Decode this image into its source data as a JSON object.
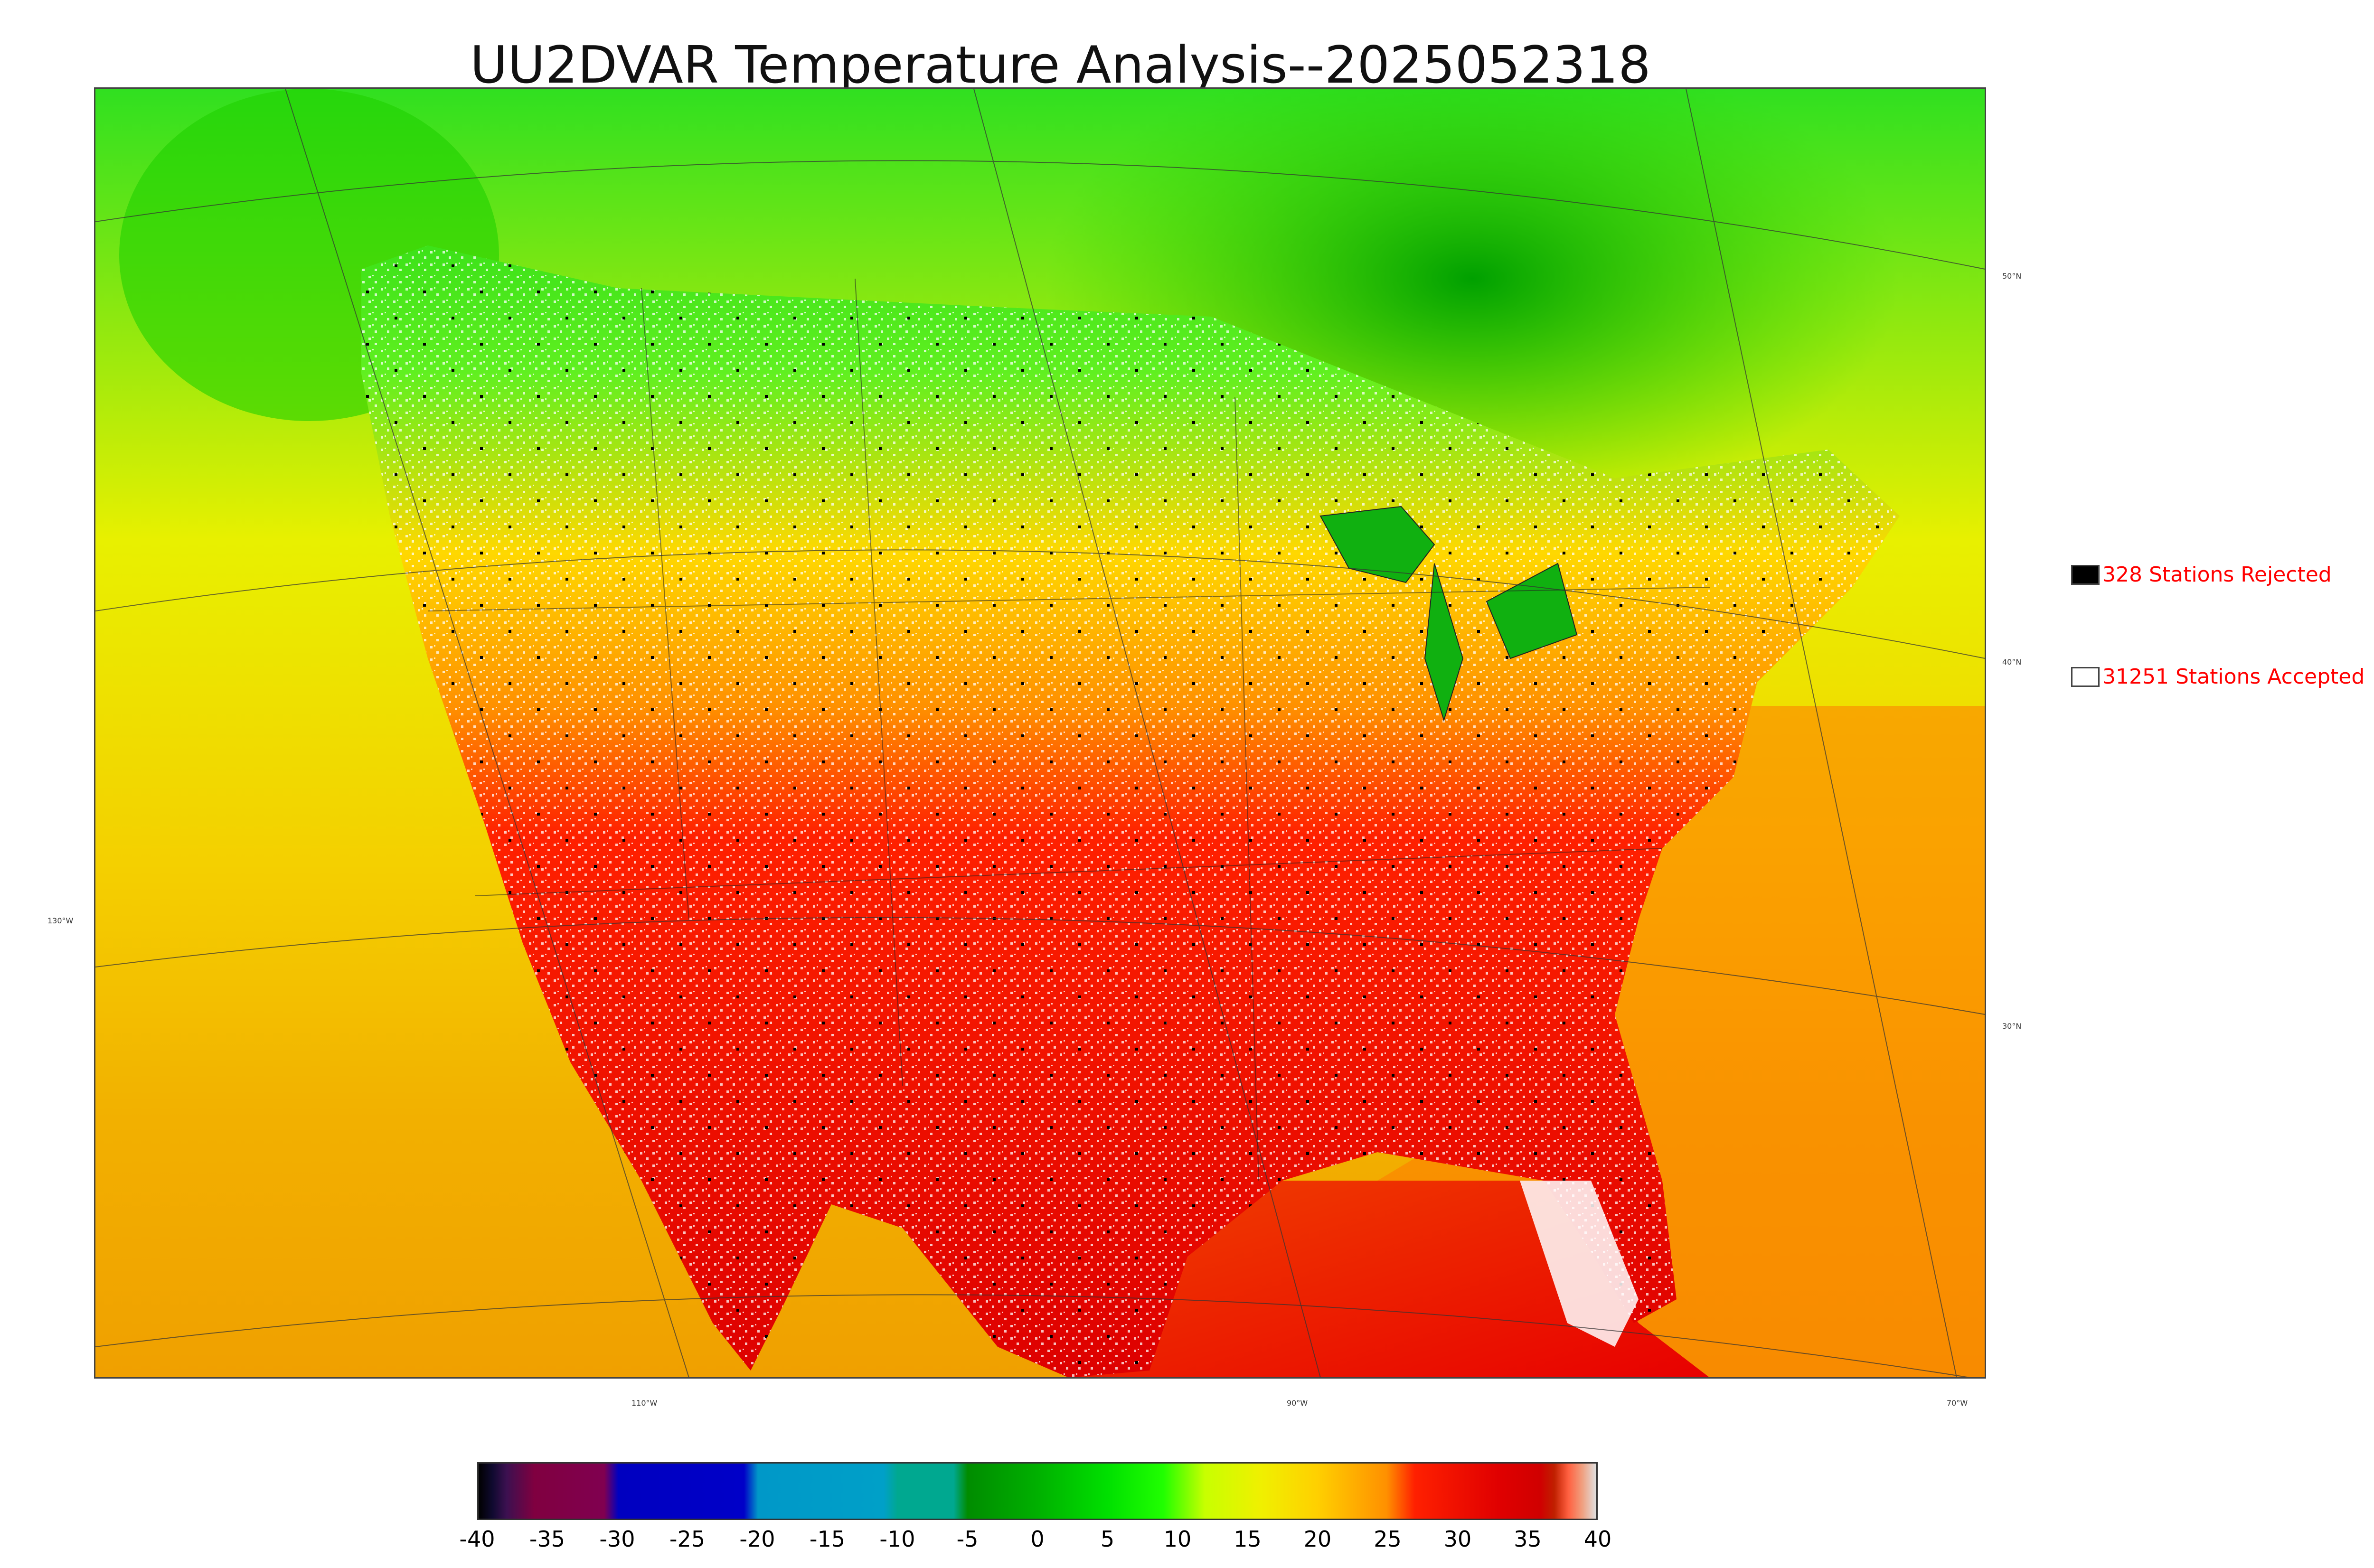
{
  "title": "UU2DVAR Temperature Analysis--2025052318",
  "map": {
    "lat_labels": [
      "50°N",
      "40°N",
      "30°N"
    ],
    "lon_labels": [
      "130°W",
      "110°W",
      "90°W",
      "70°W"
    ]
  },
  "legend": {
    "rejected": {
      "label": "328 Stations Rejected",
      "swatch_color": "#000000"
    },
    "accepted": {
      "label": "31251 Stations Accepted",
      "swatch_color": "#ffffff"
    }
  },
  "colorbar": {
    "tick_labels": [
      "-40",
      "-35",
      "-30",
      "-25",
      "-20",
      "-15",
      "-10",
      "-5",
      "0",
      "5",
      "10",
      "15",
      "20",
      "25",
      "30",
      "35",
      "40"
    ],
    "range": [
      -40,
      40
    ],
    "stops": [
      {
        "v": -40,
        "c": "#000000"
      },
      {
        "v": -39,
        "c": "#100a30"
      },
      {
        "v": -38,
        "c": "#3c1050"
      },
      {
        "v": -36,
        "c": "#800040"
      },
      {
        "v": -31,
        "c": "#800050"
      },
      {
        "v": -30,
        "c": "#0000c0"
      },
      {
        "v": -21,
        "c": "#0000c8"
      },
      {
        "v": -20,
        "c": "#0098c8"
      },
      {
        "v": -11,
        "c": "#00a0c8"
      },
      {
        "v": -10,
        "c": "#00a890"
      },
      {
        "v": -6,
        "c": "#00a890"
      },
      {
        "v": -5,
        "c": "#008c00"
      },
      {
        "v": 0,
        "c": "#00b000"
      },
      {
        "v": 5,
        "c": "#00e000"
      },
      {
        "v": 9,
        "c": "#20ff00"
      },
      {
        "v": 12,
        "c": "#c8ff00"
      },
      {
        "v": 16,
        "c": "#f0f000"
      },
      {
        "v": 20,
        "c": "#ffd000"
      },
      {
        "v": 25,
        "c": "#ff9000"
      },
      {
        "v": 27,
        "c": "#ff2000"
      },
      {
        "v": 33,
        "c": "#e00000"
      },
      {
        "v": 36,
        "c": "#d00000"
      },
      {
        "v": 37,
        "c": "#c02000"
      },
      {
        "v": 38,
        "c": "#ff6040"
      },
      {
        "v": 39,
        "c": "#f0a080"
      },
      {
        "v": 40,
        "c": "#e0e0e0"
      }
    ]
  }
}
